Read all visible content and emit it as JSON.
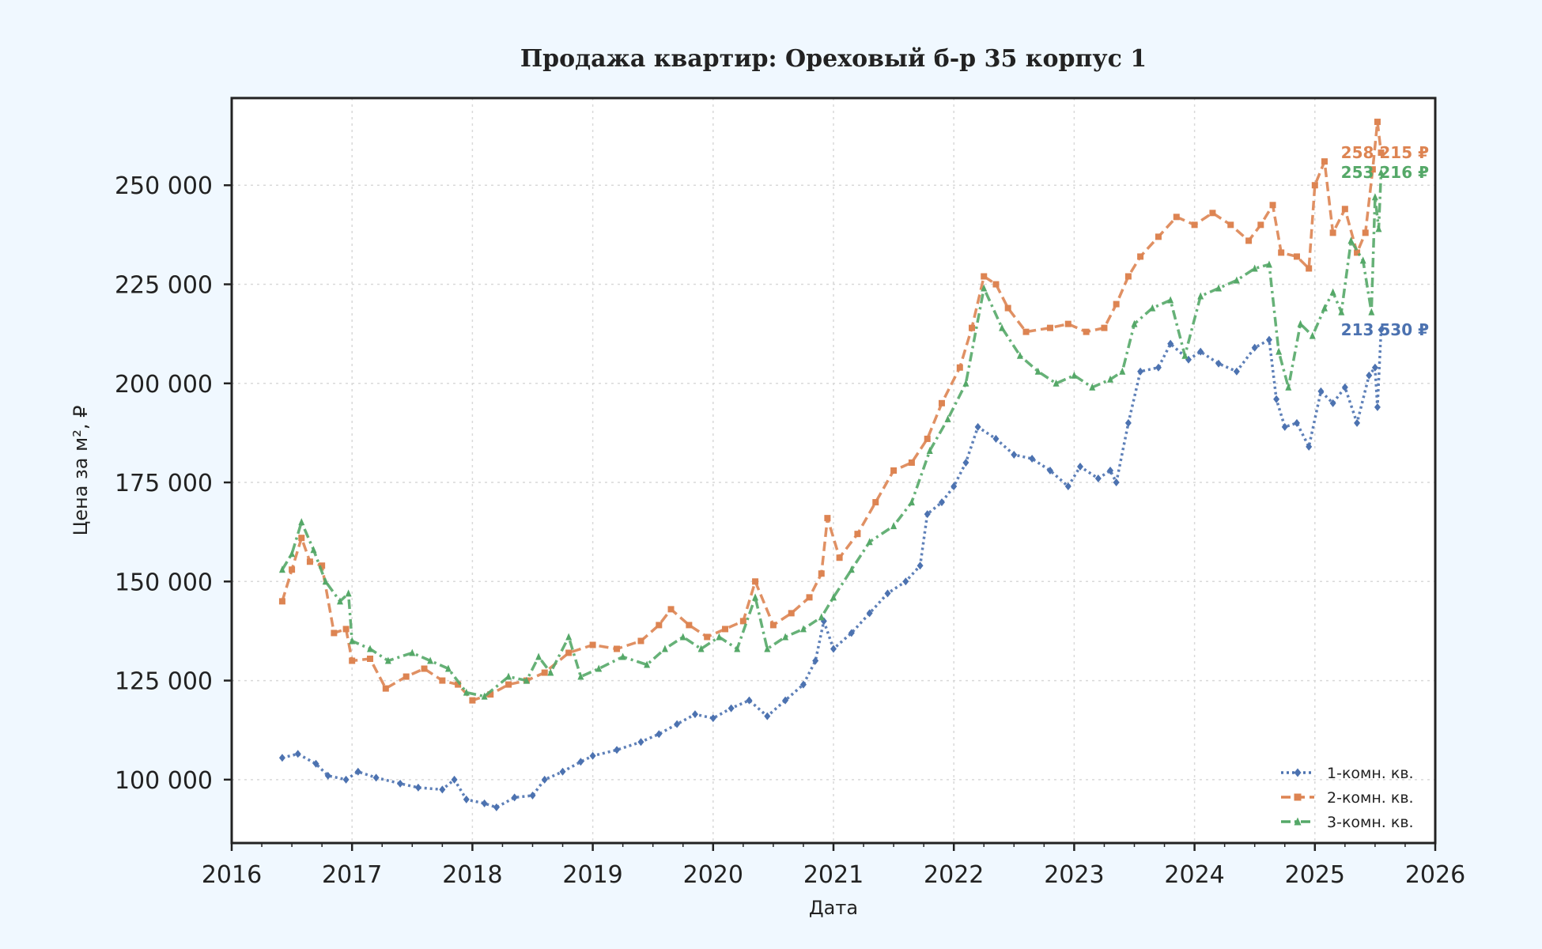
{
  "chart_data": {
    "type": "line",
    "title": "Продажа квартир: Ореховый б-р 35 корпус 1",
    "xlabel": "Дата",
    "ylabel": "Цена за м², ₽",
    "xlim": [
      2016.0,
      2026.0
    ],
    "ylim": [
      84000,
      272000
    ],
    "x_ticks": [
      2016,
      2017,
      2018,
      2019,
      2020,
      2021,
      2022,
      2023,
      2024,
      2025,
      2026
    ],
    "x_tick_labels": [
      "2016",
      "2017",
      "2018",
      "2019",
      "2020",
      "2021",
      "2022",
      "2023",
      "2024",
      "2025",
      "2026"
    ],
    "y_ticks": [
      100000,
      125000,
      150000,
      175000,
      200000,
      225000,
      250000
    ],
    "y_tick_labels": [
      "100 000",
      "125 000",
      "150 000",
      "175 000",
      "200 000",
      "225 000",
      "250 000"
    ],
    "grid": true,
    "legend_position": "bottom-right",
    "series": [
      {
        "name": "1-комн. кв.",
        "color": "#4c72b0",
        "style": "dotted",
        "marker": "diamond",
        "end_label": "213 530 ₽",
        "points": [
          [
            2016.42,
            105500
          ],
          [
            2016.55,
            106500
          ],
          [
            2016.7,
            104000
          ],
          [
            2016.8,
            101000
          ],
          [
            2016.95,
            100000
          ],
          [
            2017.05,
            102000
          ],
          [
            2017.2,
            100500
          ],
          [
            2017.4,
            99000
          ],
          [
            2017.55,
            98000
          ],
          [
            2017.75,
            97500
          ],
          [
            2017.85,
            100000
          ],
          [
            2017.95,
            95000
          ],
          [
            2018.1,
            94000
          ],
          [
            2018.2,
            93000
          ],
          [
            2018.35,
            95500
          ],
          [
            2018.5,
            96000
          ],
          [
            2018.6,
            100000
          ],
          [
            2018.75,
            102000
          ],
          [
            2018.9,
            104500
          ],
          [
            2019.0,
            106000
          ],
          [
            2019.2,
            107500
          ],
          [
            2019.4,
            109500
          ],
          [
            2019.55,
            111500
          ],
          [
            2019.7,
            114000
          ],
          [
            2019.85,
            116500
          ],
          [
            2020.0,
            115500
          ],
          [
            2020.15,
            118000
          ],
          [
            2020.3,
            120000
          ],
          [
            2020.45,
            116000
          ],
          [
            2020.6,
            120000
          ],
          [
            2020.75,
            124000
          ],
          [
            2020.85,
            130000
          ],
          [
            2020.92,
            140000
          ],
          [
            2021.0,
            133000
          ],
          [
            2021.15,
            137000
          ],
          [
            2021.3,
            142000
          ],
          [
            2021.45,
            147000
          ],
          [
            2021.6,
            150000
          ],
          [
            2021.72,
            154000
          ],
          [
            2021.78,
            167000
          ],
          [
            2021.9,
            170000
          ],
          [
            2022.0,
            174000
          ],
          [
            2022.1,
            180000
          ],
          [
            2022.2,
            189000
          ],
          [
            2022.35,
            186000
          ],
          [
            2022.5,
            182000
          ],
          [
            2022.65,
            181000
          ],
          [
            2022.8,
            178000
          ],
          [
            2022.95,
            174000
          ],
          [
            2023.05,
            179000
          ],
          [
            2023.2,
            176000
          ],
          [
            2023.3,
            178000
          ],
          [
            2023.35,
            175000
          ],
          [
            2023.45,
            190000
          ],
          [
            2023.55,
            203000
          ],
          [
            2023.7,
            204000
          ],
          [
            2023.8,
            210000
          ],
          [
            2023.95,
            206000
          ],
          [
            2024.05,
            208000
          ],
          [
            2024.2,
            205000
          ],
          [
            2024.35,
            203000
          ],
          [
            2024.5,
            209000
          ],
          [
            2024.62,
            211000
          ],
          [
            2024.68,
            196000
          ],
          [
            2024.75,
            189000
          ],
          [
            2024.85,
            190000
          ],
          [
            2024.95,
            184000
          ],
          [
            2025.05,
            198000
          ],
          [
            2025.15,
            195000
          ],
          [
            2025.25,
            199000
          ],
          [
            2025.35,
            190000
          ],
          [
            2025.45,
            202000
          ],
          [
            2025.5,
            204000
          ],
          [
            2025.52,
            194000
          ],
          [
            2025.55,
            213530
          ]
        ]
      },
      {
        "name": "2-комн. кв.",
        "color": "#dd8452",
        "style": "dashed",
        "marker": "square",
        "end_label": "258 215 ₽",
        "points": [
          [
            2016.42,
            145000
          ],
          [
            2016.5,
            153000
          ],
          [
            2016.58,
            161000
          ],
          [
            2016.65,
            155000
          ],
          [
            2016.75,
            154000
          ],
          [
            2016.85,
            137000
          ],
          [
            2016.95,
            138000
          ],
          [
            2017.0,
            130000
          ],
          [
            2017.15,
            130500
          ],
          [
            2017.28,
            123000
          ],
          [
            2017.45,
            126000
          ],
          [
            2017.6,
            128000
          ],
          [
            2017.75,
            125000
          ],
          [
            2017.88,
            124000
          ],
          [
            2018.0,
            120000
          ],
          [
            2018.15,
            121500
          ],
          [
            2018.3,
            124000
          ],
          [
            2018.45,
            125000
          ],
          [
            2018.6,
            127000
          ],
          [
            2018.8,
            132000
          ],
          [
            2019.0,
            134000
          ],
          [
            2019.2,
            133000
          ],
          [
            2019.4,
            135000
          ],
          [
            2019.55,
            139000
          ],
          [
            2019.65,
            143000
          ],
          [
            2019.8,
            139000
          ],
          [
            2019.95,
            136000
          ],
          [
            2020.1,
            138000
          ],
          [
            2020.25,
            140000
          ],
          [
            2020.35,
            150000
          ],
          [
            2020.5,
            139000
          ],
          [
            2020.65,
            142000
          ],
          [
            2020.8,
            146000
          ],
          [
            2020.9,
            152000
          ],
          [
            2020.95,
            166000
          ],
          [
            2021.05,
            156000
          ],
          [
            2021.2,
            162000
          ],
          [
            2021.35,
            170000
          ],
          [
            2021.5,
            178000
          ],
          [
            2021.65,
            180000
          ],
          [
            2021.78,
            186000
          ],
          [
            2021.9,
            195000
          ],
          [
            2022.05,
            204000
          ],
          [
            2022.15,
            214000
          ],
          [
            2022.25,
            227000
          ],
          [
            2022.35,
            225000
          ],
          [
            2022.45,
            219000
          ],
          [
            2022.6,
            213000
          ],
          [
            2022.8,
            214000
          ],
          [
            2022.95,
            215000
          ],
          [
            2023.1,
            213000
          ],
          [
            2023.25,
            214000
          ],
          [
            2023.35,
            220000
          ],
          [
            2023.45,
            227000
          ],
          [
            2023.55,
            232000
          ],
          [
            2023.7,
            237000
          ],
          [
            2023.85,
            242000
          ],
          [
            2024.0,
            240000
          ],
          [
            2024.15,
            243000
          ],
          [
            2024.3,
            240000
          ],
          [
            2024.45,
            236000
          ],
          [
            2024.55,
            240000
          ],
          [
            2024.65,
            245000
          ],
          [
            2024.72,
            233000
          ],
          [
            2024.85,
            232000
          ],
          [
            2024.95,
            229000
          ],
          [
            2025.0,
            250000
          ],
          [
            2025.08,
            256000
          ],
          [
            2025.15,
            238000
          ],
          [
            2025.25,
            244000
          ],
          [
            2025.35,
            233000
          ],
          [
            2025.42,
            238000
          ],
          [
            2025.48,
            254000
          ],
          [
            2025.52,
            266000
          ],
          [
            2025.55,
            258215
          ]
        ]
      },
      {
        "name": "3-комн. кв.",
        "color": "#55a868",
        "style": "dashdot",
        "marker": "triangle",
        "end_label": "253 216 ₽",
        "points": [
          [
            2016.42,
            153000
          ],
          [
            2016.5,
            157000
          ],
          [
            2016.58,
            165000
          ],
          [
            2016.68,
            158000
          ],
          [
            2016.78,
            150000
          ],
          [
            2016.9,
            145000
          ],
          [
            2016.97,
            147000
          ],
          [
            2017.0,
            135000
          ],
          [
            2017.15,
            133000
          ],
          [
            2017.3,
            130000
          ],
          [
            2017.5,
            132000
          ],
          [
            2017.65,
            130000
          ],
          [
            2017.8,
            128000
          ],
          [
            2017.95,
            122000
          ],
          [
            2018.1,
            121000
          ],
          [
            2018.3,
            126000
          ],
          [
            2018.45,
            125000
          ],
          [
            2018.55,
            131000
          ],
          [
            2018.65,
            127000
          ],
          [
            2018.8,
            136000
          ],
          [
            2018.9,
            126000
          ],
          [
            2019.05,
            128000
          ],
          [
            2019.25,
            131000
          ],
          [
            2019.45,
            129000
          ],
          [
            2019.6,
            133000
          ],
          [
            2019.75,
            136000
          ],
          [
            2019.9,
            133000
          ],
          [
            2020.05,
            136000
          ],
          [
            2020.2,
            133000
          ],
          [
            2020.35,
            146000
          ],
          [
            2020.45,
            133000
          ],
          [
            2020.6,
            136000
          ],
          [
            2020.75,
            138000
          ],
          [
            2020.9,
            141000
          ],
          [
            2021.0,
            146000
          ],
          [
            2021.15,
            153000
          ],
          [
            2021.3,
            160000
          ],
          [
            2021.5,
            164000
          ],
          [
            2021.65,
            170000
          ],
          [
            2021.8,
            183000
          ],
          [
            2021.95,
            191000
          ],
          [
            2022.1,
            200000
          ],
          [
            2022.25,
            224000
          ],
          [
            2022.4,
            214000
          ],
          [
            2022.55,
            207000
          ],
          [
            2022.7,
            203000
          ],
          [
            2022.85,
            200000
          ],
          [
            2023.0,
            202000
          ],
          [
            2023.15,
            199000
          ],
          [
            2023.3,
            201000
          ],
          [
            2023.4,
            203000
          ],
          [
            2023.5,
            215000
          ],
          [
            2023.65,
            219000
          ],
          [
            2023.8,
            221000
          ],
          [
            2023.92,
            207000
          ],
          [
            2024.05,
            222000
          ],
          [
            2024.2,
            224000
          ],
          [
            2024.35,
            226000
          ],
          [
            2024.5,
            229000
          ],
          [
            2024.62,
            230000
          ],
          [
            2024.7,
            208000
          ],
          [
            2024.78,
            199000
          ],
          [
            2024.88,
            215000
          ],
          [
            2024.98,
            212000
          ],
          [
            2025.08,
            219000
          ],
          [
            2025.15,
            223000
          ],
          [
            2025.22,
            218000
          ],
          [
            2025.3,
            236000
          ],
          [
            2025.4,
            231000
          ],
          [
            2025.47,
            218000
          ],
          [
            2025.5,
            247000
          ],
          [
            2025.53,
            239000
          ],
          [
            2025.55,
            253216
          ]
        ]
      }
    ]
  }
}
